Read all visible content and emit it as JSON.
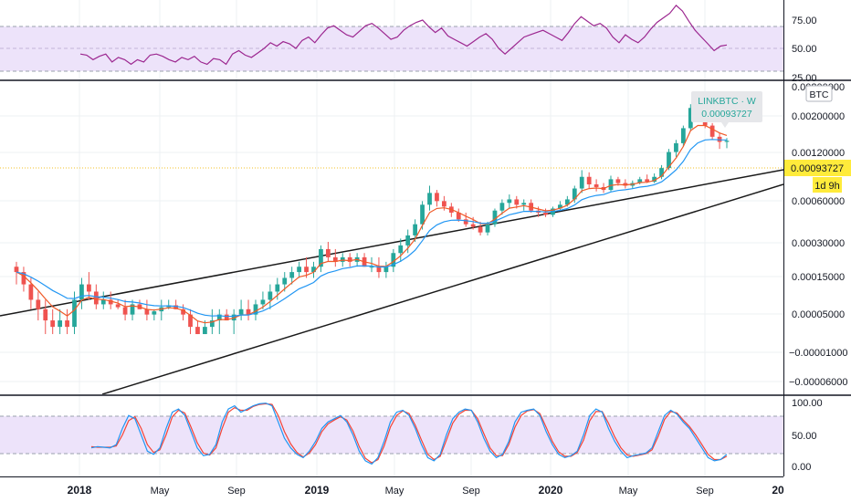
{
  "chart_data": {
    "type": "candlestick",
    "symbol_tooltip": {
      "line1": "LINKBTC · W",
      "line2": "0.00093727"
    },
    "currency_badge": "BTC",
    "last_price_label": "0.00093727",
    "countdown_label": "1d 9h",
    "colors": {
      "up": "#26a69a",
      "down": "#ef5350",
      "ema_fast": "#f05a28",
      "ema_slow": "#2196f3",
      "rsi_line": "#9c2790",
      "band_fill": "#e9d4fb",
      "stoch_k": "#2196f3",
      "stoch_d": "#f44336",
      "price_marker": "#ffeb3b"
    },
    "x_axis": {
      "tick_labels": [
        "2018",
        "May",
        "Sep",
        "2019",
        "May",
        "Sep",
        "2020",
        "May",
        "Sep",
        "20"
      ],
      "bold_labels": [
        "2018",
        "2019",
        "2020",
        "20"
      ]
    },
    "main_panel": {
      "y_tick_labels": [
        "0.00200000",
        "0.00120000",
        "0.00060000",
        "0.00030000",
        "0.00015000",
        "0.00005000",
        "−0.00001000",
        "−0.00006000"
      ],
      "clipped_top_label": "0.00200000",
      "price_scale": "log-like",
      "trendlines": [
        {
          "name": "upper trendline",
          "from_label": "2017-Nov",
          "to_label": "2020-Oct"
        },
        {
          "name": "lower trendline",
          "from_label": "2018-Jan",
          "to_label": "2020-Oct"
        }
      ],
      "ohlc_weekly_approx": [
        [
          0.00012,
          0.00013,
          9e-05,
          0.00011
        ],
        [
          0.00011,
          0.00012,
          8e-05,
          9e-05
        ],
        [
          9e-05,
          0.0001,
          6e-05,
          7e-05
        ],
        [
          7e-05,
          8e-05,
          5e-05,
          6e-05
        ],
        [
          6e-05,
          7e-05,
          4e-05,
          5e-05
        ],
        [
          5e-05,
          6e-05,
          4e-05,
          4.5e-05
        ],
        [
          4.5e-05,
          6e-05,
          4e-05,
          5e-05
        ],
        [
          5e-05,
          6e-05,
          4e-05,
          4.5e-05
        ],
        [
          4.5e-05,
          8e-05,
          4e-05,
          7e-05
        ],
        [
          7e-05,
          0.0001,
          6e-05,
          9e-05
        ],
        [
          9e-05,
          0.00011,
          7e-05,
          8e-05
        ],
        [
          8e-05,
          9e-05,
          6e-05,
          6.5e-05
        ],
        [
          6.5e-05,
          8e-05,
          6e-05,
          7e-05
        ],
        [
          7e-05,
          8e-05,
          6e-05,
          6.5e-05
        ],
        [
          6.5e-05,
          7e-05,
          6e-05,
          6.2e-05
        ],
        [
          6.2e-05,
          7e-05,
          5e-05,
          5.5e-05
        ],
        [
          5.5e-05,
          7e-05,
          5e-05,
          6.5e-05
        ],
        [
          6.5e-05,
          7e-05,
          6e-05,
          6e-05
        ],
        [
          6e-05,
          7e-05,
          5e-05,
          5.5e-05
        ],
        [
          5.5e-05,
          6e-05,
          5e-05,
          5.8e-05
        ],
        [
          5.8e-05,
          7e-05,
          5e-05,
          6.2e-05
        ],
        [
          6.2e-05,
          7e-05,
          6e-05,
          6.4e-05
        ],
        [
          6.4e-05,
          7e-05,
          6e-05,
          6e-05
        ],
        [
          6e-05,
          6.5e-05,
          5e-05,
          5.5e-05
        ],
        [
          5.5e-05,
          6e-05,
          4e-05,
          4.5e-05
        ],
        [
          4.5e-05,
          5e-05,
          4e-05,
          4e-05
        ],
        [
          4e-05,
          5e-05,
          4e-05,
          4.5e-05
        ],
        [
          4.5e-05,
          6e-05,
          4e-05,
          5e-05
        ],
        [
          5e-05,
          6e-05,
          4e-05,
          5.5e-05
        ],
        [
          5.5e-05,
          6e-05,
          5e-05,
          5e-05
        ],
        [
          5e-05,
          6e-05,
          4e-05,
          5.5e-05
        ],
        [
          5.5e-05,
          7e-05,
          5e-05,
          6e-05
        ],
        [
          6e-05,
          7e-05,
          5e-05,
          5.5e-05
        ],
        [
          5.5e-05,
          7e-05,
          5e-05,
          6.5e-05
        ],
        [
          6.5e-05,
          8e-05,
          6e-05,
          7e-05
        ],
        [
          7e-05,
          9e-05,
          6e-05,
          8e-05
        ],
        [
          8e-05,
          0.0001,
          7e-05,
          9e-05
        ],
        [
          9e-05,
          0.00011,
          8e-05,
          0.0001
        ],
        [
          0.0001,
          0.00012,
          9e-05,
          0.00011
        ],
        [
          0.00011,
          0.00013,
          0.0001,
          0.00012
        ],
        [
          0.00012,
          0.00014,
          0.0001,
          0.00011
        ],
        [
          0.00011,
          0.00013,
          0.0001,
          0.00012
        ],
        [
          0.00012,
          0.00017,
          0.00011,
          0.00016
        ],
        [
          0.00016,
          0.00018,
          0.00013,
          0.00014
        ],
        [
          0.00014,
          0.00016,
          0.00012,
          0.00013
        ],
        [
          0.00013,
          0.00015,
          0.00012,
          0.00014
        ],
        [
          0.00014,
          0.00015,
          0.00012,
          0.00013
        ],
        [
          0.00013,
          0.00015,
          0.00012,
          0.00014
        ],
        [
          0.00014,
          0.00015,
          0.00012,
          0.00012
        ],
        [
          0.00012,
          0.00014,
          0.00011,
          0.00012
        ],
        [
          0.00012,
          0.00014,
          0.0001,
          0.00011
        ],
        [
          0.00011,
          0.00013,
          0.0001,
          0.00012
        ],
        [
          0.00012,
          0.00016,
          0.00011,
          0.00015
        ],
        [
          0.00015,
          0.00019,
          0.00013,
          0.00017
        ],
        [
          0.00017,
          0.00022,
          0.00015,
          0.0002
        ],
        [
          0.0002,
          0.00026,
          0.00018,
          0.00024
        ],
        [
          0.00024,
          0.00035,
          0.00022,
          0.00033
        ],
        [
          0.00033,
          0.00045,
          0.0003,
          0.0004
        ],
        [
          0.0004,
          0.00042,
          0.00032,
          0.00035
        ],
        [
          0.00035,
          0.00038,
          0.0003,
          0.00032
        ],
        [
          0.00032,
          0.00034,
          0.00027,
          0.00029
        ],
        [
          0.00029,
          0.00031,
          0.00025,
          0.00026
        ],
        [
          0.00026,
          0.00029,
          0.00023,
          0.00024
        ],
        [
          0.00024,
          0.00027,
          0.00022,
          0.00023
        ],
        [
          0.00023,
          0.00025,
          0.0002,
          0.00021
        ],
        [
          0.00021,
          0.00025,
          0.0002,
          0.00024
        ],
        [
          0.00024,
          0.00031,
          0.00023,
          0.0003
        ],
        [
          0.0003,
          0.00036,
          0.00028,
          0.00034
        ],
        [
          0.00034,
          0.00039,
          0.00031,
          0.00036
        ],
        [
          0.00036,
          0.00038,
          0.00031,
          0.00033
        ],
        [
          0.00033,
          0.00036,
          0.0003,
          0.00034
        ],
        [
          0.00034,
          0.00036,
          0.00029,
          0.0003
        ],
        [
          0.0003,
          0.00032,
          0.00027,
          0.00029
        ],
        [
          0.00029,
          0.00031,
          0.00027,
          0.00028
        ],
        [
          0.00028,
          0.00032,
          0.00027,
          0.00031
        ],
        [
          0.00031,
          0.00035,
          0.0003,
          0.00033
        ],
        [
          0.00033,
          0.00038,
          0.00032,
          0.00036
        ],
        [
          0.00036,
          0.00045,
          0.00034,
          0.00043
        ],
        [
          0.00043,
          0.00058,
          0.0004,
          0.00052
        ],
        [
          0.00052,
          0.00056,
          0.00043,
          0.00046
        ],
        [
          0.00046,
          0.0005,
          0.00041,
          0.00044
        ],
        [
          0.00044,
          0.00047,
          0.0004,
          0.00042
        ],
        [
          0.00042,
          0.00053,
          0.00041,
          0.0005
        ],
        [
          0.0005,
          0.00052,
          0.00045,
          0.00047
        ],
        [
          0.00047,
          0.0005,
          0.00043,
          0.00045
        ],
        [
          0.00045,
          0.00049,
          0.00043,
          0.00047
        ],
        [
          0.00047,
          0.00052,
          0.00046,
          0.0005
        ],
        [
          0.0005,
          0.00054,
          0.00047,
          0.00048
        ],
        [
          0.00048,
          0.00055,
          0.00047,
          0.00052
        ],
        [
          0.00052,
          0.00063,
          0.0005,
          0.0006
        ],
        [
          0.0006,
          0.00082,
          0.00058,
          0.00078
        ],
        [
          0.00078,
          0.00095,
          0.00072,
          0.0009
        ],
        [
          0.0009,
          0.0012,
          0.00085,
          0.00115
        ],
        [
          0.00115,
          0.0017,
          0.0011,
          0.0016
        ],
        [
          0.0016,
          0.0018,
          0.0013,
          0.0014
        ],
        [
          0.0014,
          0.0015,
          0.00115,
          0.0012
        ],
        [
          0.0012,
          0.00125,
          0.00095,
          0.001
        ],
        [
          0.001,
          0.00106,
          0.00082,
          0.00092
        ],
        [
          0.00092,
          0.00098,
          0.00083,
          0.00093727
        ]
      ]
    },
    "rsi_panel": {
      "y_tick_labels": [
        "75.00",
        "50.00",
        "25.00"
      ],
      "band": [
        30,
        70
      ],
      "midline": 50,
      "ylim": [
        20,
        95
      ],
      "values_approx": [
        45,
        44,
        40,
        43,
        45,
        38,
        42,
        40,
        36,
        40,
        38,
        44,
        45,
        43,
        40,
        38,
        42,
        40,
        43,
        38,
        36,
        41,
        40,
        36,
        45,
        48,
        44,
        42,
        46,
        50,
        55,
        52,
        56,
        54,
        50,
        57,
        60,
        55,
        62,
        68,
        70,
        66,
        62,
        60,
        65,
        70,
        72,
        68,
        63,
        58,
        60,
        66,
        70,
        73,
        75,
        69,
        64,
        68,
        61,
        58,
        55,
        52,
        56,
        60,
        63,
        58,
        50,
        45,
        50,
        55,
        60,
        62,
        64,
        66,
        63,
        60,
        57,
        64,
        72,
        78,
        74,
        70,
        72,
        68,
        60,
        55,
        62,
        58,
        55,
        60,
        67,
        73,
        77,
        81,
        88,
        83,
        74,
        66,
        60,
        54,
        48,
        52,
        53
      ]
    },
    "stoch_panel": {
      "y_tick_labels": [
        "100.00",
        "50.00",
        "0.00"
      ],
      "band": [
        20,
        80
      ],
      "ylim": [
        -5,
        105
      ],
      "k_approx": [
        30,
        32,
        31,
        30,
        35,
        60,
        80,
        75,
        50,
        25,
        20,
        30,
        60,
        85,
        90,
        80,
        55,
        30,
        18,
        20,
        35,
        70,
        90,
        95,
        85,
        90,
        95,
        98,
        99,
        95,
        70,
        45,
        30,
        20,
        15,
        25,
        40,
        60,
        70,
        75,
        80,
        70,
        50,
        25,
        10,
        5,
        15,
        40,
        70,
        85,
        88,
        80,
        60,
        35,
        15,
        10,
        20,
        50,
        75,
        85,
        90,
        88,
        70,
        45,
        25,
        15,
        20,
        40,
        70,
        85,
        88,
        90,
        80,
        55,
        35,
        20,
        15,
        18,
        25,
        50,
        80,
        90,
        85,
        60,
        40,
        25,
        15,
        18,
        20,
        22,
        30,
        55,
        80,
        88,
        82,
        70,
        60,
        45,
        30,
        15,
        10,
        12,
        20
      ],
      "d_approx": [
        32,
        31,
        31,
        31,
        33,
        50,
        72,
        78,
        60,
        35,
        23,
        27,
        50,
        78,
        88,
        84,
        62,
        38,
        22,
        19,
        30,
        60,
        85,
        92,
        88,
        88,
        94,
        97,
        98,
        97,
        80,
        55,
        36,
        23,
        16,
        22,
        35,
        55,
        67,
        73,
        78,
        73,
        56,
        32,
        14,
        7,
        12,
        33,
        62,
        80,
        87,
        83,
        65,
        42,
        20,
        12,
        17,
        42,
        68,
        82,
        88,
        88,
        75,
        52,
        30,
        18,
        18,
        35,
        62,
        80,
        87,
        89,
        83,
        62,
        40,
        24,
        17,
        17,
        23,
        42,
        72,
        86,
        86,
        68,
        47,
        30,
        19,
        17,
        19,
        21,
        27,
        48,
        74,
        86,
        84,
        73,
        63,
        50,
        35,
        20,
        12,
        12,
        17
      ]
    }
  }
}
